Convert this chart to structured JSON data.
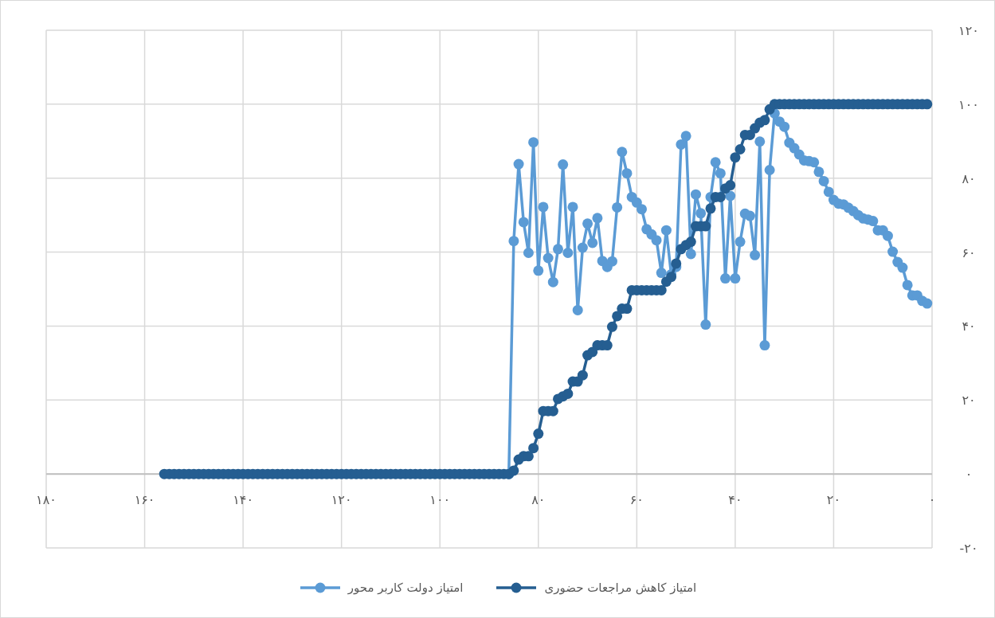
{
  "chart_data": {
    "type": "line",
    "xlim": [
      180,
      0
    ],
    "ylim": [
      -20,
      120
    ],
    "xticks": [
      {
        "value": 180,
        "label": "۱۸۰"
      },
      {
        "value": 160,
        "label": "۱۶۰"
      },
      {
        "value": 140,
        "label": "۱۴۰"
      },
      {
        "value": 120,
        "label": "۱۲۰"
      },
      {
        "value": 100,
        "label": "۱۰۰"
      },
      {
        "value": 80,
        "label": "۸۰"
      },
      {
        "value": 60,
        "label": "۶۰"
      },
      {
        "value": 40,
        "label": "۴۰"
      },
      {
        "value": 20,
        "label": "۲۰"
      },
      {
        "value": 0,
        "label": "۰"
      }
    ],
    "yticks": [
      {
        "value": -20,
        "label": "-۲۰"
      },
      {
        "value": 0,
        "label": "۰"
      },
      {
        "value": 20,
        "label": "۲۰"
      },
      {
        "value": 40,
        "label": "۴۰"
      },
      {
        "value": 60,
        "label": "۶۰"
      },
      {
        "value": 80,
        "label": "۸۰"
      },
      {
        "value": 100,
        "label": "۱۰۰"
      },
      {
        "value": 120,
        "label": "۱۲۰"
      }
    ],
    "x": [
      156,
      155,
      154,
      153,
      152,
      151,
      150,
      149,
      148,
      147,
      146,
      145,
      144,
      143,
      142,
      141,
      140,
      139,
      138,
      137,
      136,
      135,
      134,
      133,
      132,
      131,
      130,
      129,
      128,
      127,
      126,
      125,
      124,
      123,
      122,
      121,
      120,
      119,
      118,
      117,
      116,
      115,
      114,
      113,
      112,
      111,
      110,
      109,
      108,
      107,
      106,
      105,
      104,
      103,
      102,
      101,
      100,
      99,
      98,
      97,
      96,
      95,
      94,
      93,
      92,
      91,
      90,
      89,
      88,
      87,
      86,
      85,
      84,
      83,
      82,
      81,
      80,
      79,
      78,
      77,
      76,
      75,
      74,
      73,
      72,
      71,
      70,
      69,
      68,
      67,
      66,
      65,
      64,
      63,
      62,
      61,
      60,
      59,
      58,
      57,
      56,
      55,
      54,
      53,
      52,
      51,
      50,
      49,
      48,
      47,
      46,
      45,
      44,
      43,
      42,
      41,
      40,
      39,
      38,
      37,
      36,
      35,
      34,
      33,
      32,
      31,
      30,
      29,
      28,
      27,
      26,
      25,
      24,
      23,
      22,
      21,
      20,
      19,
      18,
      17,
      16,
      15,
      14,
      13,
      12,
      11,
      10,
      9,
      8,
      7,
      6,
      5,
      4,
      3,
      2,
      1
    ],
    "series": [
      {
        "name": "امتیاز کاهش مراجعات حضوری",
        "color": "#255e91",
        "values": [
          0,
          0,
          0,
          0,
          0,
          0,
          0,
          0,
          0,
          0,
          0,
          0,
          0,
          0,
          0,
          0,
          0,
          0,
          0,
          0,
          0,
          0,
          0,
          0,
          0,
          0,
          0,
          0,
          0,
          0,
          0,
          0,
          0,
          0,
          0,
          0,
          0,
          0,
          0,
          0,
          0,
          0,
          0,
          0,
          0,
          0,
          0,
          0,
          0,
          0,
          0,
          0,
          0,
          0,
          0,
          0,
          0,
          0,
          0,
          0,
          0,
          0,
          0,
          0,
          0,
          0,
          0,
          0,
          0,
          0,
          0,
          0.9,
          3.9,
          4.8,
          4.8,
          7,
          10.9,
          17,
          17,
          17,
          20.3,
          21,
          21.7,
          25,
          25,
          26.7,
          32.1,
          33,
          34.8,
          34.8,
          34.8,
          39.8,
          42.7,
          44.7,
          44.7,
          49.7,
          49.7,
          49.7,
          49.7,
          49.7,
          49.7,
          49.7,
          52,
          53.3,
          56.9,
          60.8,
          61.9,
          62.8,
          67,
          67,
          67,
          71.8,
          74.9,
          74.9,
          77.2,
          78.1,
          85.6,
          87.8,
          91.7,
          91.7,
          93.5,
          95,
          95.7,
          98.6,
          100,
          100,
          100,
          100,
          100,
          100,
          100,
          100,
          100,
          100,
          100,
          100,
          100,
          100,
          100,
          100,
          100,
          100,
          100,
          100,
          100,
          100,
          100,
          100,
          100,
          100,
          100,
          100,
          100,
          100,
          100,
          100
        ]
      },
      {
        "name": "امتیاز دولت کاربر محور",
        "color": "#5b9bd5",
        "values": [
          null,
          null,
          null,
          null,
          null,
          null,
          null,
          null,
          null,
          null,
          null,
          null,
          null,
          null,
          null,
          null,
          null,
          null,
          null,
          null,
          null,
          null,
          null,
          null,
          null,
          null,
          null,
          null,
          null,
          null,
          null,
          null,
          null,
          null,
          null,
          null,
          null,
          null,
          null,
          null,
          null,
          null,
          null,
          null,
          null,
          null,
          null,
          null,
          null,
          null,
          null,
          null,
          null,
          null,
          null,
          null,
          null,
          null,
          null,
          null,
          null,
          null,
          null,
          null,
          null,
          null,
          null,
          null,
          null,
          null,
          0,
          63,
          83.8,
          68.1,
          59.8,
          89.7,
          55,
          72.2,
          58.4,
          51.9,
          60.8,
          83.7,
          59.8,
          72.2,
          44.3,
          61.2,
          67.7,
          62.5,
          69.2,
          57.6,
          56,
          57.5,
          72.1,
          87.1,
          81.3,
          74.9,
          73.4,
          71.6,
          66.2,
          64.8,
          63.2,
          54.4,
          65.9,
          54,
          56,
          89.1,
          91.4,
          59.5,
          75.6,
          70.5,
          40.4,
          74.9,
          84.3,
          81.3,
          52.9,
          75.2,
          52.9,
          62.8,
          70.4,
          69.8,
          59.2,
          89.9,
          34.8,
          82.2,
          97.5,
          95.3,
          93.9,
          89.6,
          88.1,
          86.4,
          84.8,
          84.6,
          84.3,
          81.7,
          79.2,
          76.3,
          74.1,
          73.1,
          72.9,
          72,
          71.1,
          70,
          69.1,
          68.8,
          68.4,
          65.9,
          65.9,
          64.4,
          60.1,
          57.3,
          55.8,
          51.1,
          48.3,
          48.3,
          46.8,
          46.1
        ]
      }
    ],
    "marker": "circle",
    "grid": true,
    "legend": "bottom"
  }
}
